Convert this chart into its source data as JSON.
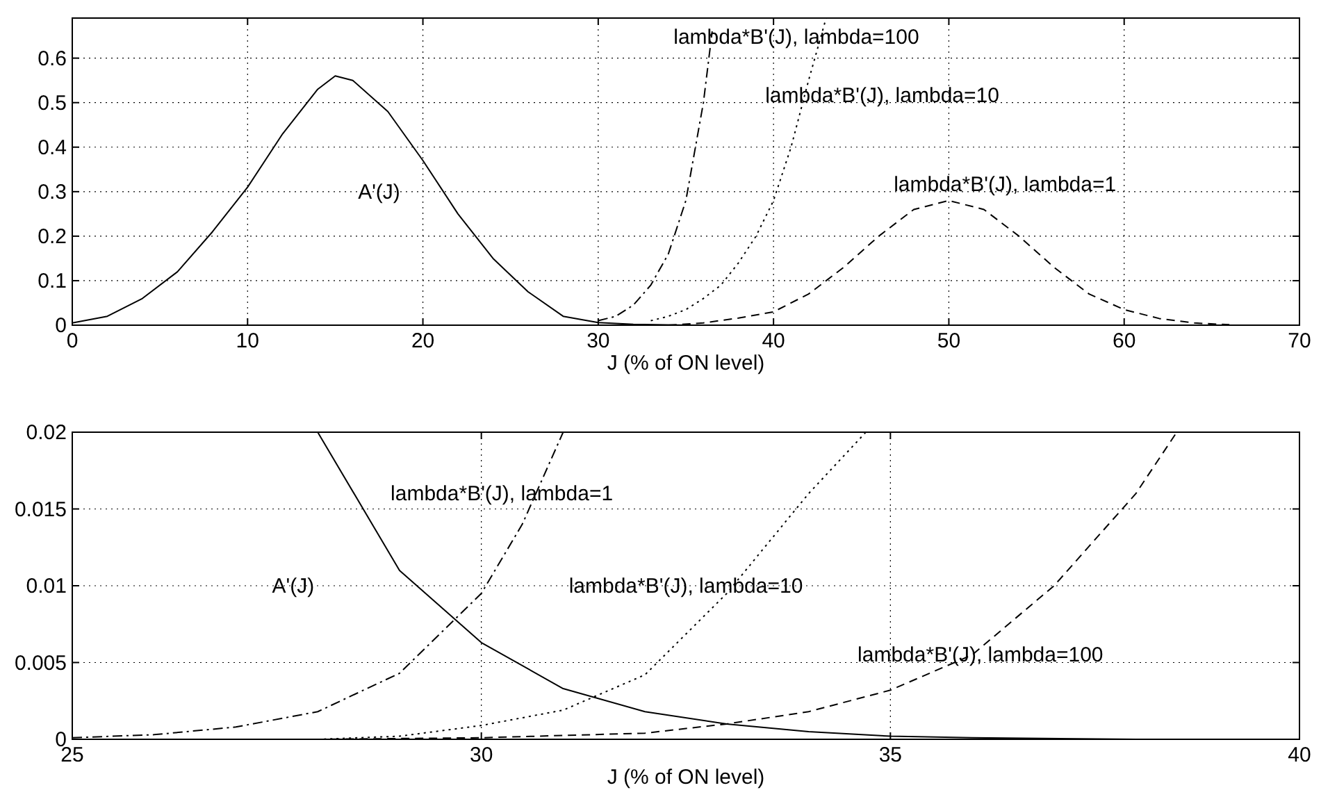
{
  "chart_data": [
    {
      "type": "line",
      "xlabel": "J (% of ON level)",
      "xlim": [
        0,
        70
      ],
      "xticks": [
        0,
        10,
        20,
        30,
        40,
        50,
        60,
        70
      ],
      "ylim": [
        0,
        0.69
      ],
      "yticks": [
        0,
        0.1,
        0.2,
        0.3,
        0.4,
        0.5,
        0.6
      ],
      "grid": true,
      "series": [
        {
          "color": "#000000",
          "line_style": "solid",
          "x": [
            0,
            2,
            4,
            6,
            8,
            10,
            12,
            14,
            15,
            16,
            18,
            20,
            22,
            24,
            26,
            28,
            30,
            32,
            35,
            40
          ],
          "values": [
            0.005,
            0.02,
            0.06,
            0.12,
            0.21,
            0.31,
            0.43,
            0.53,
            0.56,
            0.55,
            0.48,
            0.37,
            0.25,
            0.15,
            0.075,
            0.02,
            0.006,
            0.002,
            0,
            0
          ]
        },
        {
          "color": "#000000",
          "line_style": "dashdot",
          "x": [
            30,
            31,
            32,
            33,
            34,
            35,
            36,
            36.5
          ],
          "values": [
            0.01,
            0.02,
            0.045,
            0.09,
            0.16,
            0.28,
            0.5,
            0.66
          ]
        },
        {
          "color": "#000000",
          "line_style": "dotted",
          "x": [
            33,
            34,
            35,
            36,
            37,
            38,
            39,
            40,
            41,
            42,
            43
          ],
          "values": [
            0.01,
            0.02,
            0.035,
            0.06,
            0.09,
            0.14,
            0.2,
            0.28,
            0.4,
            0.55,
            0.69
          ]
        },
        {
          "color": "#000000",
          "line_style": "dashed",
          "x": [
            34,
            36,
            38,
            40,
            42,
            44,
            46,
            48,
            50,
            52,
            54,
            56,
            58,
            60,
            62,
            64,
            66
          ],
          "values": [
            0,
            0.005,
            0.016,
            0.03,
            0.07,
            0.13,
            0.2,
            0.26,
            0.28,
            0.26,
            0.2,
            0.13,
            0.07,
            0.035,
            0.015,
            0.005,
            0.001
          ]
        }
      ],
      "annotations": [
        "A'(J)",
        "lambda*B'(J), lambda=100",
        "lambda*B'(J), lambda=10",
        "lambda*B'(J), lambda=1"
      ]
    },
    {
      "type": "line",
      "xlabel": "J (% of ON level)",
      "xlim": [
        25,
        40
      ],
      "xticks": [
        25,
        30,
        35,
        40
      ],
      "ylim": [
        0,
        0.02
      ],
      "yticks": [
        0,
        0.005,
        0.01,
        0.015,
        0.02
      ],
      "grid": true,
      "series": [
        {
          "color": "#000000",
          "line_style": "solid",
          "x": [
            28,
            29,
            30,
            31,
            32,
            33,
            34,
            35,
            36,
            38,
            40
          ],
          "values": [
            0.02,
            0.011,
            0.0063,
            0.0033,
            0.0018,
            0.001,
            0.0005,
            0.0002,
            0.0001,
            0,
            0
          ]
        },
        {
          "color": "#000000",
          "line_style": "dashdot",
          "x": [
            25,
            26,
            27,
            28,
            29,
            30,
            30.5,
            31
          ],
          "values": [
            0.0001,
            0.0003,
            0.0008,
            0.0018,
            0.0043,
            0.0095,
            0.014,
            0.02
          ]
        },
        {
          "color": "#000000",
          "line_style": "dotted",
          "x": [
            28,
            29,
            30,
            31,
            32,
            33,
            34,
            34.7
          ],
          "values": [
            0,
            0.0002,
            0.0009,
            0.0019,
            0.0042,
            0.0095,
            0.016,
            0.02
          ]
        },
        {
          "color": "#000000",
          "line_style": "dashed",
          "x": [
            28,
            30,
            32,
            33,
            34,
            35,
            36,
            37,
            38,
            38.5
          ],
          "values": [
            0,
            0.0001,
            0.0004,
            0.001,
            0.0018,
            0.0032,
            0.0055,
            0.01,
            0.016,
            0.02
          ]
        }
      ],
      "annotations": [
        "A'(J)",
        "lambda*B'(J), lambda=1",
        "lambda*B'(J), lambda=10",
        "lambda*B'(J), lambda=100"
      ]
    }
  ]
}
